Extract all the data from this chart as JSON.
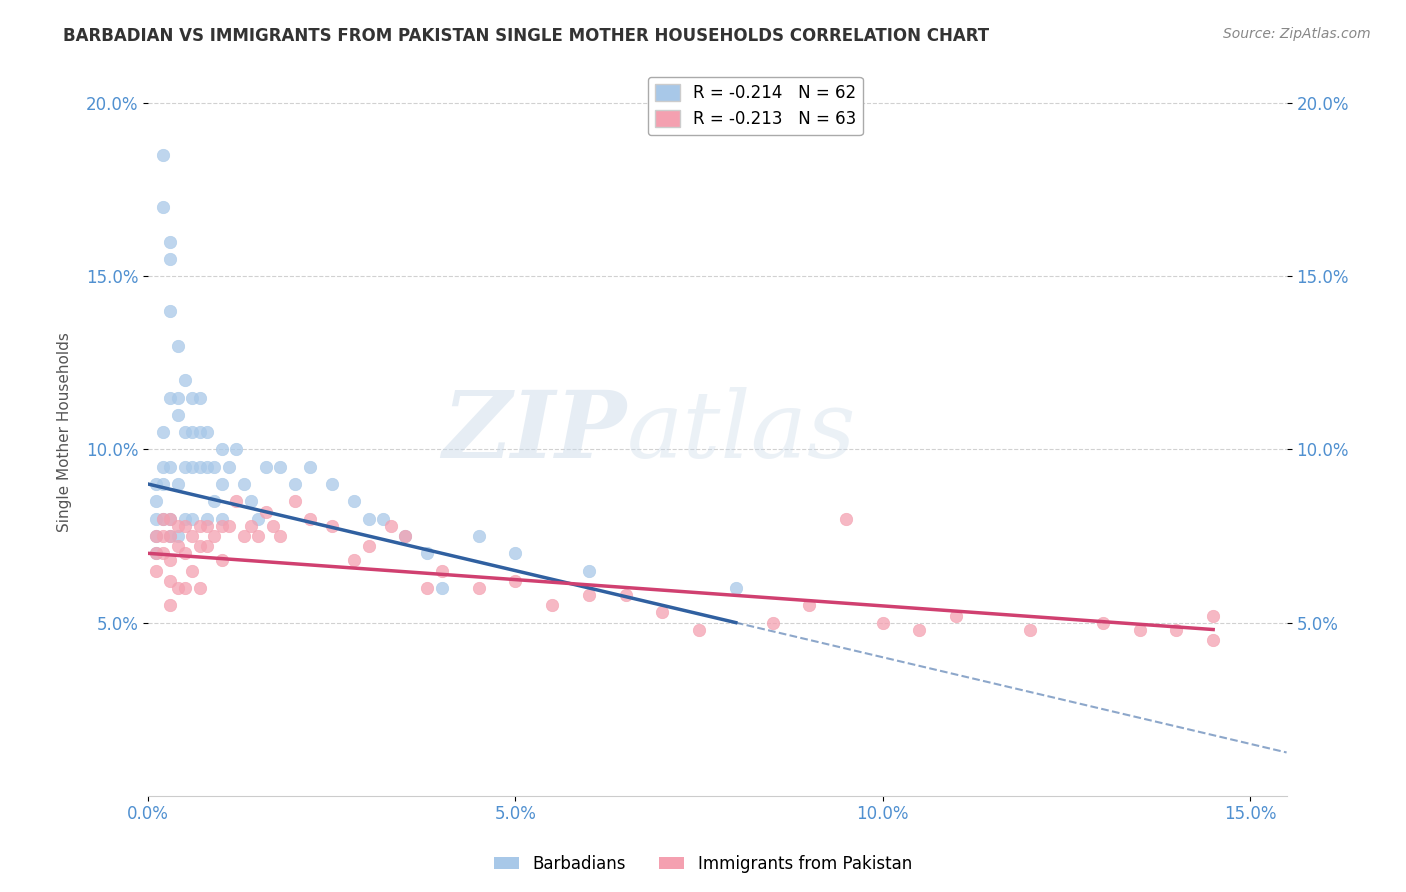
{
  "title": "BARBADIAN VS IMMIGRANTS FROM PAKISTAN SINGLE MOTHER HOUSEHOLDS CORRELATION CHART",
  "source": "Source: ZipAtlas.com",
  "ylabel": "Single Mother Households",
  "xlabel": "",
  "xlim": [
    0.0,
    0.155
  ],
  "ylim": [
    0.0,
    0.21
  ],
  "xticks": [
    0.0,
    0.05,
    0.1,
    0.15
  ],
  "xticklabels": [
    "0.0%",
    "5.0%",
    "10.0%",
    "15.0%"
  ],
  "yticks": [
    0.05,
    0.1,
    0.15,
    0.2
  ],
  "yticklabels": [
    "5.0%",
    "10.0%",
    "15.0%",
    "20.0%"
  ],
  "watermark_zip": "ZIP",
  "watermark_atlas": "atlas",
  "legend_entries": [
    {
      "label": "R = -0.214   N = 62",
      "color": "#a8c8e8"
    },
    {
      "label": "R = -0.213   N = 63",
      "color": "#f4a0b0"
    }
  ],
  "barbadian_color": "#a8c8e8",
  "pakistan_color": "#f4a0b0",
  "barbadian_trend_color": "#3060a0",
  "pakistan_trend_color": "#d04070",
  "background_color": "#ffffff",
  "grid_color": "#cccccc",
  "tick_color": "#5090d0",
  "barbadian_x": [
    0.001,
    0.001,
    0.001,
    0.001,
    0.001,
    0.002,
    0.002,
    0.002,
    0.002,
    0.002,
    0.002,
    0.003,
    0.003,
    0.003,
    0.003,
    0.003,
    0.003,
    0.003,
    0.004,
    0.004,
    0.004,
    0.004,
    0.004,
    0.005,
    0.005,
    0.005,
    0.005,
    0.006,
    0.006,
    0.006,
    0.006,
    0.007,
    0.007,
    0.007,
    0.008,
    0.008,
    0.008,
    0.009,
    0.009,
    0.01,
    0.01,
    0.01,
    0.011,
    0.012,
    0.013,
    0.014,
    0.015,
    0.016,
    0.018,
    0.02,
    0.022,
    0.025,
    0.028,
    0.03,
    0.032,
    0.035,
    0.038,
    0.04,
    0.045,
    0.05,
    0.06,
    0.08
  ],
  "barbadian_y": [
    0.09,
    0.085,
    0.08,
    0.075,
    0.07,
    0.185,
    0.17,
    0.105,
    0.095,
    0.09,
    0.08,
    0.16,
    0.155,
    0.14,
    0.115,
    0.095,
    0.08,
    0.075,
    0.13,
    0.115,
    0.11,
    0.09,
    0.075,
    0.12,
    0.105,
    0.095,
    0.08,
    0.115,
    0.105,
    0.095,
    0.08,
    0.115,
    0.105,
    0.095,
    0.105,
    0.095,
    0.08,
    0.095,
    0.085,
    0.1,
    0.09,
    0.08,
    0.095,
    0.1,
    0.09,
    0.085,
    0.08,
    0.095,
    0.095,
    0.09,
    0.095,
    0.09,
    0.085,
    0.08,
    0.08,
    0.075,
    0.07,
    0.06,
    0.075,
    0.07,
    0.065,
    0.06
  ],
  "pakistan_x": [
    0.001,
    0.001,
    0.001,
    0.002,
    0.002,
    0.002,
    0.003,
    0.003,
    0.003,
    0.003,
    0.003,
    0.004,
    0.004,
    0.004,
    0.005,
    0.005,
    0.005,
    0.006,
    0.006,
    0.007,
    0.007,
    0.007,
    0.008,
    0.008,
    0.009,
    0.01,
    0.01,
    0.011,
    0.012,
    0.013,
    0.014,
    0.015,
    0.016,
    0.017,
    0.018,
    0.02,
    0.022,
    0.025,
    0.028,
    0.03,
    0.033,
    0.035,
    0.038,
    0.04,
    0.045,
    0.05,
    0.055,
    0.06,
    0.065,
    0.07,
    0.075,
    0.085,
    0.09,
    0.095,
    0.1,
    0.105,
    0.11,
    0.12,
    0.13,
    0.135,
    0.14,
    0.145,
    0.145
  ],
  "pakistan_y": [
    0.075,
    0.07,
    0.065,
    0.08,
    0.075,
    0.07,
    0.08,
    0.075,
    0.068,
    0.062,
    0.055,
    0.078,
    0.072,
    0.06,
    0.078,
    0.07,
    0.06,
    0.075,
    0.065,
    0.078,
    0.072,
    0.06,
    0.078,
    0.072,
    0.075,
    0.078,
    0.068,
    0.078,
    0.085,
    0.075,
    0.078,
    0.075,
    0.082,
    0.078,
    0.075,
    0.085,
    0.08,
    0.078,
    0.068,
    0.072,
    0.078,
    0.075,
    0.06,
    0.065,
    0.06,
    0.062,
    0.055,
    0.058,
    0.058,
    0.053,
    0.048,
    0.05,
    0.055,
    0.08,
    0.05,
    0.048,
    0.052,
    0.048,
    0.05,
    0.048,
    0.048,
    0.052,
    0.045
  ]
}
